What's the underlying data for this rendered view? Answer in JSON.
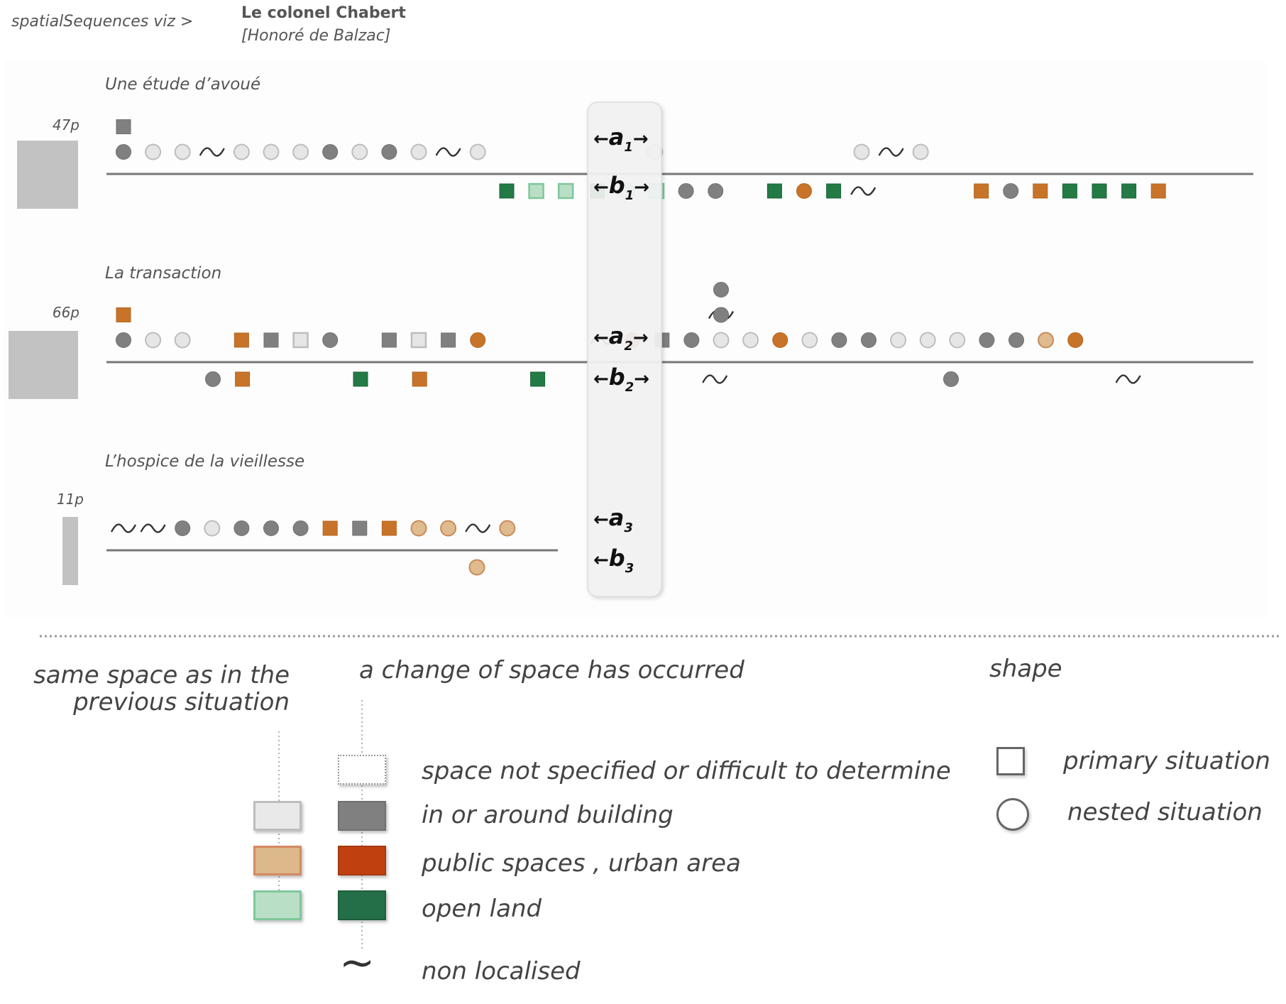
{
  "header": {
    "breadcrumb": "spatialSequences viz >",
    "title": "Le colonel Chabert",
    "author": "[Honoré de Balzac]"
  },
  "colors": {
    "building_same": "#e6e6e6",
    "building": "#808080",
    "public_same": "#dfbb8f",
    "public": "#c7742a",
    "public_legend": "#c04010",
    "open_same": "#b9dfc6",
    "open": "#237a45",
    "open_legend": "#246e48"
  },
  "sections": [
    {
      "title": "Une étude d’avoué",
      "pages": "47p",
      "pages_value": 47,
      "above": [
        [
          2,
          "building",
          "sq",
          "c"
        ],
        [
          2,
          "building",
          "sq",
          "c"
        ],
        [
          1,
          "building",
          "ci",
          "c"
        ],
        [
          1,
          "building",
          "ci",
          "s"
        ],
        [
          1,
          "building",
          "ci",
          "s"
        ],
        [
          1,
          "",
          "wave",
          ""
        ],
        [
          1,
          "building",
          "ci",
          "s"
        ],
        [
          1,
          "building",
          "ci",
          "s"
        ],
        [
          1,
          "building",
          "ci",
          "s"
        ],
        [
          1,
          "building",
          "ci",
          "c"
        ],
        [
          1,
          "building",
          "ci",
          "s"
        ],
        [
          1,
          "building",
          "ci",
          "c"
        ],
        [
          1,
          "building",
          "ci",
          "s"
        ],
        [
          1,
          "",
          "wave",
          ""
        ],
        [
          1,
          "building",
          "ci",
          "s"
        ],
        [
          1,
          "building",
          "ci",
          "s"
        ],
        [
          1,
          "building",
          "ci",
          "s"
        ],
        [
          1,
          "",
          "wave",
          ""
        ],
        [
          1,
          "building",
          "ci",
          "s"
        ]
      ],
      "below": [
        [
          1,
          "open",
          "sq",
          "c"
        ],
        [
          1,
          "open",
          "sq",
          "s"
        ],
        [
          1,
          "open",
          "sq",
          "s"
        ],
        [
          1,
          "open",
          "sq",
          "c"
        ],
        [
          1,
          "open",
          "ci",
          "s"
        ],
        [
          1,
          "open",
          "sq",
          "s"
        ],
        [
          1,
          "building",
          "ci",
          "c"
        ],
        [
          1,
          "building",
          "ci",
          "c"
        ],
        [
          1,
          "open",
          "sq",
          "c"
        ],
        [
          1,
          "public",
          "ci",
          "c"
        ],
        [
          1,
          "open",
          "sq",
          "c"
        ],
        [
          1,
          "",
          "wave",
          ""
        ],
        [
          1,
          "public",
          "sq",
          "c"
        ],
        [
          1,
          "building",
          "ci",
          "c"
        ],
        [
          1,
          "public",
          "sq",
          "c"
        ],
        [
          1,
          "open",
          "sq",
          "c"
        ],
        [
          1,
          "open",
          "sq",
          "c"
        ],
        [
          1,
          "open",
          "sq",
          "c"
        ],
        [
          1,
          "public",
          "sq",
          "c"
        ]
      ]
    },
    {
      "title": "La transaction",
      "pages": "66p",
      "pages_value": 66,
      "above": [
        [
          2,
          "public",
          "sq",
          "c"
        ],
        [
          1,
          "building",
          "ci",
          "c"
        ],
        [
          1,
          "building",
          "ci",
          "s"
        ],
        [
          1,
          "building",
          "ci",
          "s"
        ],
        [
          1,
          "public",
          "sq",
          "c"
        ],
        [
          1,
          "building",
          "sq",
          "c"
        ],
        [
          1,
          "building",
          "sq",
          "s"
        ],
        [
          1,
          "building",
          "ci",
          "c"
        ],
        [
          1,
          "building",
          "sq",
          "c"
        ],
        [
          1,
          "building",
          "sq",
          "s"
        ],
        [
          1,
          "building",
          "sq",
          "c"
        ],
        [
          1,
          "public",
          "ci",
          "c"
        ],
        [
          1,
          "",
          "wave",
          ""
        ],
        [
          1,
          "public",
          "ci",
          "c"
        ],
        [
          1,
          "building",
          "sq",
          "c"
        ],
        [
          1,
          "building",
          "ci",
          "c"
        ],
        [
          2,
          "",
          "wave",
          ""
        ],
        [
          3,
          "building",
          "ci",
          "c"
        ],
        [
          2,
          "public",
          "ci",
          "c"
        ],
        [
          2,
          "building",
          "ci",
          "c"
        ],
        [
          1,
          "building",
          "ci",
          "s"
        ],
        [
          1,
          "building",
          "ci",
          "s"
        ],
        [
          1,
          "public",
          "ci",
          "c"
        ],
        [
          1,
          "building",
          "ci",
          "s"
        ],
        [
          1,
          "building",
          "ci",
          "c"
        ],
        [
          1,
          "building",
          "ci",
          "c"
        ],
        [
          1,
          "building",
          "ci",
          "s"
        ],
        [
          1,
          "building",
          "ci",
          "s"
        ],
        [
          1,
          "building",
          "ci",
          "s"
        ],
        [
          1,
          "building",
          "ci",
          "c"
        ],
        [
          1,
          "building",
          "ci",
          "c"
        ],
        [
          1,
          "public",
          "ci",
          "s"
        ],
        [
          1,
          "public",
          "ci",
          "c"
        ]
      ],
      "below": [
        [
          1,
          "building",
          "ci",
          "c"
        ],
        [
          1,
          "public",
          "sq",
          "c"
        ],
        [
          1,
          "open",
          "sq",
          "c"
        ],
        [
          1,
          "public",
          "sq",
          "c"
        ],
        [
          1,
          "open",
          "sq",
          "c"
        ],
        [
          1,
          "",
          "wave",
          ""
        ],
        [
          1,
          "building",
          "ci",
          "c"
        ],
        [
          1,
          "",
          "wave",
          ""
        ]
      ]
    },
    {
      "title": "L’hospice de la vieillesse",
      "pages": "11p",
      "pages_value": 11,
      "above": [
        [
          1,
          "",
          "wave",
          ""
        ],
        [
          1,
          "",
          "wave",
          ""
        ],
        [
          1,
          "building",
          "ci",
          "c"
        ],
        [
          1,
          "building",
          "ci",
          "s"
        ],
        [
          1,
          "building",
          "ci",
          "c"
        ],
        [
          1,
          "building",
          "ci",
          "c"
        ],
        [
          1,
          "building",
          "ci",
          "c"
        ],
        [
          1,
          "public",
          "sq",
          "c"
        ],
        [
          1,
          "building",
          "sq",
          "c"
        ],
        [
          1,
          "public",
          "sq",
          "c"
        ],
        [
          1,
          "public",
          "ci",
          "s"
        ],
        [
          1,
          "public",
          "ci",
          "s"
        ],
        [
          1,
          "",
          "wave",
          ""
        ],
        [
          1,
          "public",
          "ci",
          "s"
        ]
      ],
      "below": [
        [
          1,
          "public",
          "ci",
          "s"
        ]
      ]
    }
  ],
  "marker_labels": [
    {
      "letter": "a",
      "sub": "1",
      "arrows": "both"
    },
    {
      "letter": "b",
      "sub": "1",
      "arrows": "both"
    },
    {
      "letter": "a",
      "sub": "2",
      "arrows": "both"
    },
    {
      "letter": "b",
      "sub": "2",
      "arrows": "both"
    },
    {
      "letter": "a",
      "sub": "3",
      "arrows": "left"
    },
    {
      "letter": "b",
      "sub": "3",
      "arrows": "left"
    }
  ],
  "legend": {
    "same_space": "same space as in the previous situation",
    "same_space_line1": "same space as in the",
    "same_space_line2": "previous situation",
    "change_space": "a change of space has occurred",
    "shape_title": "shape",
    "not_specified": "space not specified or difficult to determine",
    "building": "in or around  building",
    "public": "public spaces , urban area",
    "open": "open land",
    "non_localised": "non localised",
    "primary": "primary situation",
    "nested": "nested situation",
    "tilde": "~"
  }
}
